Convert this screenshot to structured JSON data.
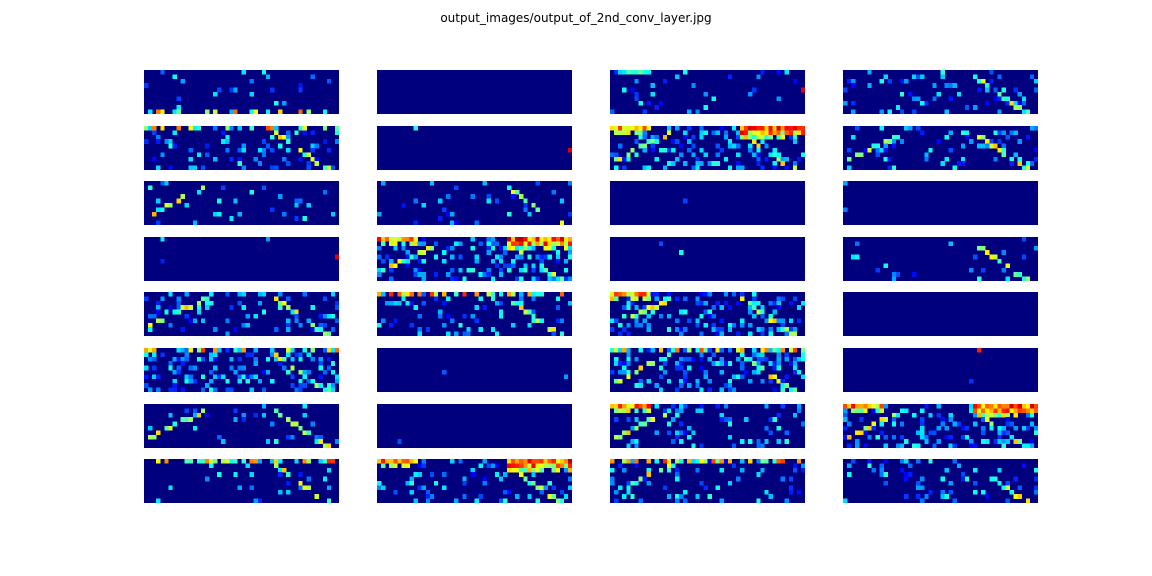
{
  "figure": {
    "title": "output_images/output_of_2nd_conv_layer.jpg"
  },
  "colormap": {
    "name": "jet",
    "background": "#00007f",
    "stops": [
      "#00007f",
      "#0000ff",
      "#007fff",
      "#00ffff",
      "#7fff7f",
      "#ffff00",
      "#ff7f00",
      "#ff0000",
      "#7f0000"
    ]
  },
  "chart_data": {
    "type": "heatmap",
    "grid": {
      "rows": 8,
      "cols": 4
    },
    "map_resolution": {
      "width": 48,
      "height": 10
    },
    "value_range": [
      0,
      1
    ],
    "axes_visible": false,
    "maps": [
      {
        "row": 0,
        "col": 0,
        "activity": "sparse",
        "features": [
          "bottom-edge"
        ]
      },
      {
        "row": 0,
        "col": 1,
        "activity": "empty",
        "features": []
      },
      {
        "row": 0,
        "col": 2,
        "activity": "sparse",
        "features": [
          "top-left-streak",
          "right-edge-hot"
        ]
      },
      {
        "row": 0,
        "col": 3,
        "activity": "medium",
        "features": [
          "right-diagonal"
        ]
      },
      {
        "row": 1,
        "col": 0,
        "activity": "medium",
        "features": [
          "top-edge",
          "right-diagonal"
        ]
      },
      {
        "row": 1,
        "col": 1,
        "activity": "empty",
        "features": [
          "right-edge-hot"
        ]
      },
      {
        "row": 1,
        "col": 2,
        "activity": "dense",
        "features": [
          "top-left-hot",
          "top-right-hot",
          "left-diagonal",
          "right-diagonal"
        ]
      },
      {
        "row": 1,
        "col": 3,
        "activity": "medium",
        "features": [
          "left-diagonal",
          "right-diagonal"
        ]
      },
      {
        "row": 2,
        "col": 0,
        "activity": "sparse",
        "features": [
          "left-diagonal"
        ]
      },
      {
        "row": 2,
        "col": 1,
        "activity": "sparse",
        "features": [
          "right-diagonal"
        ]
      },
      {
        "row": 2,
        "col": 2,
        "activity": "empty",
        "features": []
      },
      {
        "row": 2,
        "col": 3,
        "activity": "empty",
        "features": []
      },
      {
        "row": 3,
        "col": 0,
        "activity": "empty",
        "features": [
          "right-edge-hot"
        ]
      },
      {
        "row": 3,
        "col": 1,
        "activity": "dense",
        "features": [
          "top-left-hot",
          "top-right-hot",
          "left-diagonal",
          "right-diagonal"
        ]
      },
      {
        "row": 3,
        "col": 2,
        "activity": "empty",
        "features": []
      },
      {
        "row": 3,
        "col": 3,
        "activity": "sparse",
        "features": [
          "right-diagonal"
        ]
      },
      {
        "row": 4,
        "col": 0,
        "activity": "medium",
        "features": [
          "left-diagonal",
          "right-diagonal"
        ]
      },
      {
        "row": 4,
        "col": 1,
        "activity": "medium",
        "features": [
          "top-edge",
          "right-diagonal"
        ]
      },
      {
        "row": 4,
        "col": 2,
        "activity": "dense",
        "features": [
          "top-left-hot",
          "left-diagonal",
          "right-diagonal"
        ]
      },
      {
        "row": 4,
        "col": 3,
        "activity": "empty",
        "features": []
      },
      {
        "row": 5,
        "col": 0,
        "activity": "dense",
        "features": [
          "top-edge",
          "right-diagonal"
        ]
      },
      {
        "row": 5,
        "col": 1,
        "activity": "empty",
        "features": []
      },
      {
        "row": 5,
        "col": 2,
        "activity": "dense",
        "features": [
          "top-edge",
          "left-diagonal",
          "right-diagonal"
        ]
      },
      {
        "row": 5,
        "col": 3,
        "activity": "empty",
        "features": [
          "top-hot-dot"
        ]
      },
      {
        "row": 6,
        "col": 0,
        "activity": "sparse",
        "features": [
          "left-diagonal",
          "right-diagonal"
        ]
      },
      {
        "row": 6,
        "col": 1,
        "activity": "empty",
        "features": []
      },
      {
        "row": 6,
        "col": 2,
        "activity": "medium",
        "features": [
          "top-left-hot",
          "left-diagonal"
        ]
      },
      {
        "row": 6,
        "col": 3,
        "activity": "dense",
        "features": [
          "top-left-hot",
          "top-right-hot",
          "left-diagonal",
          "right-diagonal"
        ]
      },
      {
        "row": 7,
        "col": 0,
        "activity": "sparse",
        "features": [
          "top-edge",
          "right-diagonal"
        ]
      },
      {
        "row": 7,
        "col": 1,
        "activity": "medium",
        "features": [
          "top-left-hot",
          "top-right-hot",
          "right-diagonal"
        ]
      },
      {
        "row": 7,
        "col": 2,
        "activity": "medium",
        "features": [
          "top-edge",
          "left-diagonal"
        ]
      },
      {
        "row": 7,
        "col": 3,
        "activity": "medium",
        "features": [
          "right-diagonal"
        ]
      }
    ]
  }
}
